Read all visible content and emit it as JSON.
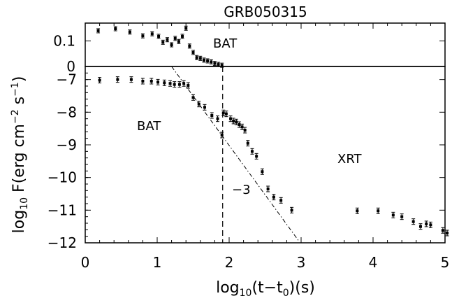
{
  "title": "GRB050315",
  "chart_data": [
    {
      "type": "scatter",
      "panel": "top",
      "xlim": [
        0,
        5
      ],
      "ylim": [
        0,
        0.17
      ],
      "yticks": [
        0,
        0.1
      ],
      "ytick_labels": [
        "0",
        "0.1"
      ],
      "annotations": [
        "BAT"
      ],
      "series": [
        {
          "name": "BAT",
          "x": [
            0.18,
            0.42,
            0.62,
            0.8,
            0.93,
            1.02,
            1.08,
            1.14,
            1.2,
            1.25,
            1.3,
            1.35,
            1.4,
            1.45,
            1.5,
            1.55,
            1.6,
            1.65,
            1.7,
            1.75,
            1.8,
            1.85,
            1.9
          ],
          "y": [
            0.14,
            0.148,
            0.135,
            0.12,
            0.128,
            0.118,
            0.095,
            0.105,
            0.085,
            0.11,
            0.098,
            0.118,
            0.15,
            0.08,
            0.055,
            0.035,
            0.032,
            0.025,
            0.022,
            0.018,
            0.012,
            0.008,
            0.005
          ]
        }
      ]
    },
    {
      "type": "scatter",
      "panel": "bottom",
      "xlabel": "log10(t−t0)(s)",
      "ylabel": "log10 F(erg cm−2 s−1)",
      "xlim": [
        0,
        5
      ],
      "ylim": [
        -12,
        -6.6
      ],
      "xticks": [
        0,
        1,
        2,
        3,
        4,
        5
      ],
      "xtick_labels": [
        "0",
        "1",
        "2",
        "3",
        "4",
        "5"
      ],
      "yticks": [
        -7,
        -8,
        -9,
        -10,
        -11,
        -12
      ],
      "ytick_labels": [
        "−7",
        "−8",
        "−9",
        "−10",
        "−11",
        "−12"
      ],
      "annotations": [
        "BAT",
        "XRT",
        "−3"
      ],
      "vline_x": 1.91,
      "powerlaw_line": {
        "slope": -3,
        "x": [
          1.2,
          2.97
        ],
        "y": [
          -6.6,
          -11.95
        ]
      },
      "series": [
        {
          "name": "BAT",
          "x": [
            0.2,
            0.45,
            0.64,
            0.8,
            0.92,
            1.01,
            1.1,
            1.18,
            1.24,
            1.31,
            1.37,
            1.43,
            1.5,
            1.58,
            1.66,
            1.76,
            1.84,
            1.9
          ],
          "y": [
            -7.02,
            -7.0,
            -7.0,
            -7.05,
            -7.05,
            -7.08,
            -7.1,
            -7.12,
            -7.15,
            -7.15,
            -7.12,
            -7.18,
            -7.55,
            -7.75,
            -7.85,
            -8.1,
            -8.2,
            -8.7
          ]
        },
        {
          "name": "XRT",
          "x": [
            1.92,
            1.96,
            2.02,
            2.06,
            2.1,
            2.14,
            2.18,
            2.22,
            2.26,
            2.32,
            2.38,
            2.46,
            2.54,
            2.62,
            2.72,
            2.87,
            3.78,
            4.07,
            4.28,
            4.4,
            4.56,
            4.66,
            4.74,
            4.8,
            4.97,
            5.03
          ],
          "y": [
            -8.02,
            -8.05,
            -8.2,
            -8.27,
            -8.3,
            -8.38,
            -8.45,
            -8.55,
            -8.95,
            -9.2,
            -9.35,
            -9.82,
            -10.35,
            -10.6,
            -10.7,
            -11.0,
            -11.02,
            -11.02,
            -11.15,
            -11.2,
            -11.35,
            -11.5,
            -11.42,
            -11.45,
            -11.62,
            -11.7
          ]
        }
      ]
    }
  ]
}
